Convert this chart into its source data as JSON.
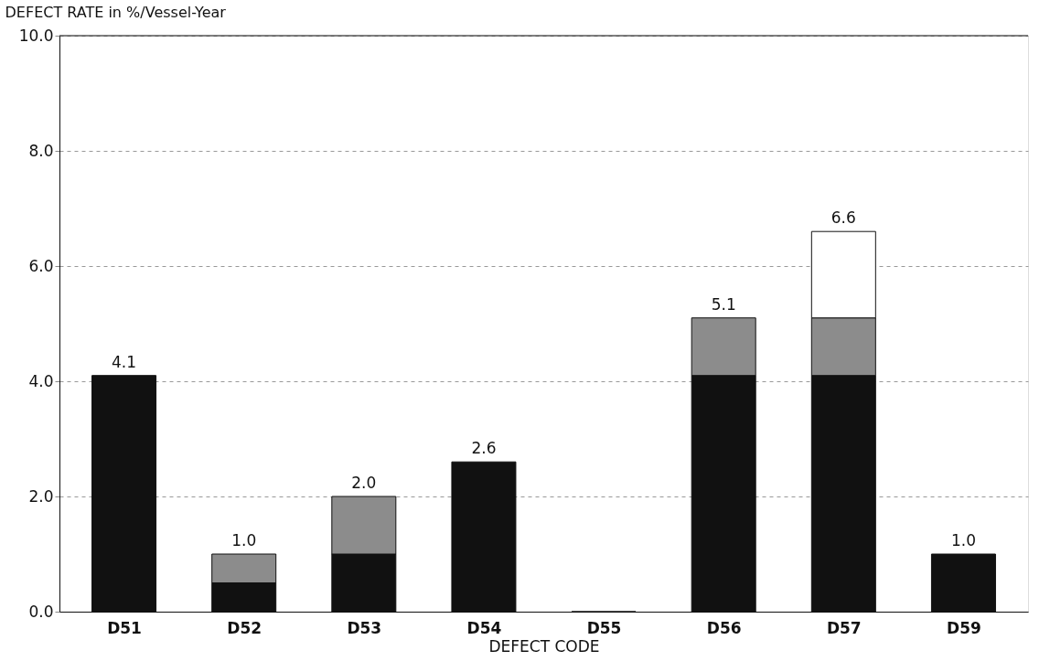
{
  "chart_data": {
    "type": "bar",
    "stacked": true,
    "ylabel": "DEFECT RATE in %/Vessel-Year",
    "xlabel": "DEFECT CODE",
    "categories": [
      "D51",
      "D52",
      "D53",
      "D54",
      "D55",
      "D56",
      "D57",
      "D59"
    ],
    "series": [
      {
        "color": "#111111",
        "values": [
          4.1,
          0.5,
          1.0,
          2.6,
          0,
          4.1,
          4.1,
          1.0
        ]
      },
      {
        "color": "#8c8c8c",
        "values": [
          null,
          0.5,
          1.0,
          null,
          null,
          1.0,
          1.0,
          null
        ]
      },
      {
        "color": "#ffffff",
        "values": [
          null,
          null,
          null,
          null,
          null,
          null,
          1.5,
          null
        ]
      }
    ],
    "totals": [
      "4.1",
      "1.0",
      "2.0",
      "2.6",
      null,
      "5.1",
      "6.6",
      "1.0"
    ],
    "ylim": [
      0,
      10
    ],
    "yticks": [
      {
        "value": 0,
        "label": "0.0"
      },
      {
        "value": 2,
        "label": "2.0"
      },
      {
        "value": 4,
        "label": "4.0"
      },
      {
        "value": 6,
        "label": "6.0"
      },
      {
        "value": 8,
        "label": "8.0"
      },
      {
        "value": 10,
        "label": "10.0"
      }
    ],
    "grid": "y"
  }
}
